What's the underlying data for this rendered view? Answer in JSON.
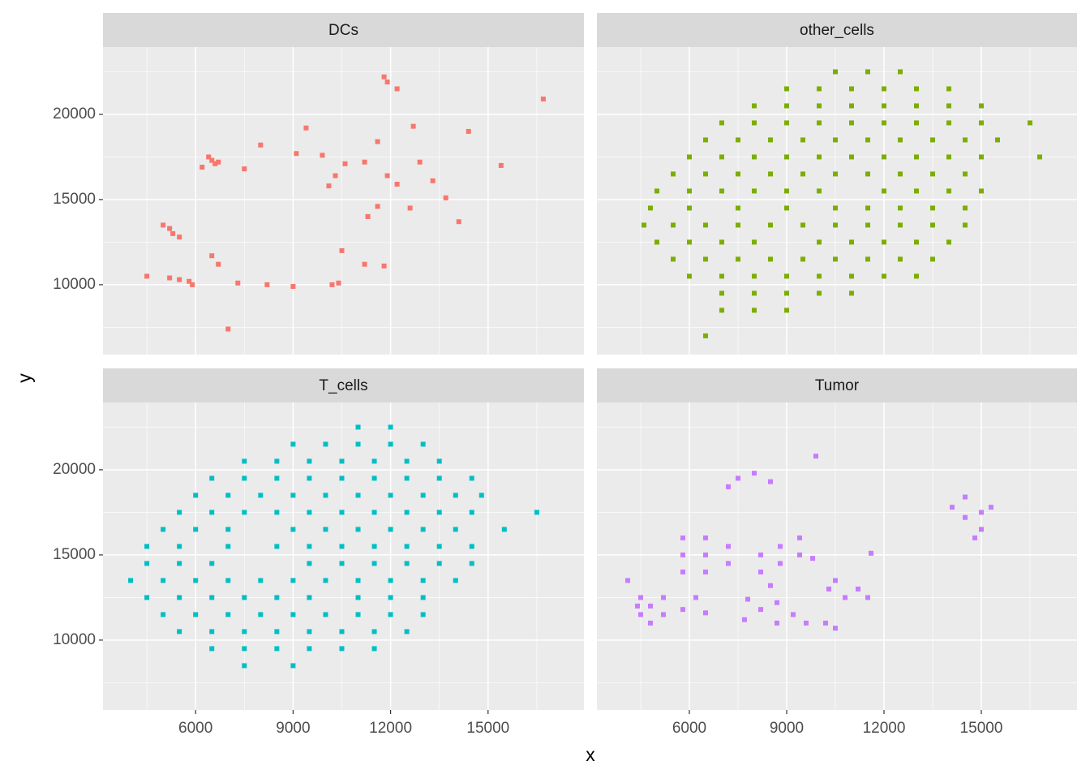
{
  "chart_data": {
    "type": "scatter",
    "xlabel": "x",
    "ylabel": "y",
    "xlim": [
      3150,
      17950
    ],
    "ylim": [
      5900,
      23950
    ],
    "xticks": [
      6000,
      9000,
      12000,
      15000
    ],
    "yticks": [
      10000,
      15000,
      20000
    ],
    "xminorticks": [
      4500,
      7500,
      10500,
      13500,
      16500
    ],
    "yminorticks": [
      7500,
      12500,
      17500,
      22500
    ],
    "grid": true,
    "series": [
      {
        "name": "DCs",
        "color": "#F8766D",
        "x": [
          5200,
          5000,
          5300,
          5500,
          5200,
          5500,
          5800,
          5900,
          4500,
          6200,
          6500,
          6600,
          6400,
          6700,
          6500,
          6700,
          7300,
          8200,
          9000,
          10200,
          10400,
          7500,
          8000,
          9100,
          9400,
          9900,
          10100,
          10300,
          10600,
          11200,
          11600,
          11900,
          12200,
          12700,
          12900,
          13300,
          13700,
          14100,
          14400,
          15400,
          16700,
          11800,
          11300,
          11600,
          12600,
          11200,
          11800,
          10500,
          7000,
          12200,
          11900
        ],
        "y": [
          13300,
          13500,
          13000,
          12800,
          10400,
          10300,
          10200,
          10000,
          10500,
          16900,
          17300,
          17100,
          17500,
          17200,
          11700,
          11200,
          10100,
          10000,
          9900,
          10000,
          10100,
          16800,
          18200,
          17700,
          19200,
          17600,
          15800,
          16400,
          17100,
          17200,
          18400,
          16400,
          15900,
          19300,
          17200,
          16100,
          15100,
          13700,
          19000,
          17000,
          20900,
          22200,
          14000,
          14600,
          14500,
          11200,
          11100,
          12000,
          7400,
          21500,
          21900
        ]
      },
      {
        "name": "other_cells",
        "color": "#7CAE00",
        "x": [
          10500,
          11500,
          12500,
          9000,
          10000,
          11000,
          12000,
          13000,
          14000,
          8000,
          9000,
          10000,
          11000,
          12000,
          13000,
          14000,
          15000,
          7000,
          8000,
          9000,
          10000,
          11000,
          12000,
          13000,
          14000,
          15000,
          16500,
          6500,
          7500,
          8500,
          9500,
          10500,
          11500,
          12500,
          13500,
          14500,
          15500,
          6000,
          7000,
          8000,
          9000,
          10000,
          11000,
          12000,
          13000,
          14000,
          15000,
          16800,
          5500,
          6500,
          7500,
          8500,
          9500,
          10500,
          11500,
          12500,
          13500,
          14500,
          5000,
          6000,
          7000,
          8000,
          9000,
          10000,
          12000,
          13000,
          14000,
          15000,
          4800,
          6000,
          7500,
          9000,
          10500,
          11500,
          12500,
          13500,
          14500,
          4600,
          5500,
          6500,
          7500,
          8500,
          9500,
          10500,
          11500,
          12500,
          13500,
          14500,
          5000,
          6000,
          7000,
          8000,
          10000,
          11000,
          12000,
          13000,
          14000,
          5500,
          6500,
          7500,
          8500,
          9500,
          10500,
          11500,
          12500,
          13500,
          6000,
          7000,
          8000,
          9000,
          10000,
          11000,
          12000,
          13000,
          7000,
          8000,
          9000,
          10000,
          11000,
          7000,
          8000,
          9000,
          6500
        ],
        "y": [
          22500,
          22500,
          22500,
          21500,
          21500,
          21500,
          21500,
          21500,
          21500,
          20500,
          20500,
          20500,
          20500,
          20500,
          20500,
          20500,
          20500,
          19500,
          19500,
          19500,
          19500,
          19500,
          19500,
          19500,
          19500,
          19500,
          19500,
          18500,
          18500,
          18500,
          18500,
          18500,
          18500,
          18500,
          18500,
          18500,
          18500,
          17500,
          17500,
          17500,
          17500,
          17500,
          17500,
          17500,
          17500,
          17500,
          17500,
          17500,
          16500,
          16500,
          16500,
          16500,
          16500,
          16500,
          16500,
          16500,
          16500,
          16500,
          15500,
          15500,
          15500,
          15500,
          15500,
          15500,
          15500,
          15500,
          15500,
          15500,
          14500,
          14500,
          14500,
          14500,
          14500,
          14500,
          14500,
          14500,
          14500,
          13500,
          13500,
          13500,
          13500,
          13500,
          13500,
          13500,
          13500,
          13500,
          13500,
          13500,
          12500,
          12500,
          12500,
          12500,
          12500,
          12500,
          12500,
          12500,
          12500,
          11500,
          11500,
          11500,
          11500,
          11500,
          11500,
          11500,
          11500,
          11500,
          10500,
          10500,
          10500,
          10500,
          10500,
          10500,
          10500,
          10500,
          9500,
          9500,
          9500,
          9500,
          9500,
          8500,
          8500,
          8500,
          7000
        ]
      },
      {
        "name": "T_cells",
        "color": "#00BFC4",
        "x": [
          11000,
          12000,
          9000,
          10000,
          11000,
          12000,
          13000,
          7500,
          8500,
          9500,
          10500,
          11500,
          12500,
          13500,
          6500,
          7500,
          8500,
          9500,
          10500,
          11500,
          12500,
          13500,
          14500,
          6000,
          7000,
          8000,
          9000,
          10000,
          11000,
          12000,
          13000,
          14000,
          14800,
          5500,
          6500,
          7500,
          8500,
          9500,
          10500,
          11500,
          12500,
          13500,
          14500,
          16500,
          5000,
          6000,
          7000,
          9000,
          10000,
          11000,
          12000,
          13000,
          14000,
          15500,
          4500,
          5500,
          7000,
          8500,
          9500,
          10500,
          11500,
          12500,
          13500,
          14500,
          4500,
          5500,
          6500,
          9500,
          10500,
          11500,
          12500,
          13500,
          14500,
          4000,
          5000,
          6000,
          7000,
          8000,
          9000,
          10000,
          11000,
          12000,
          13000,
          14000,
          4500,
          5500,
          6500,
          7500,
          8500,
          9500,
          11000,
          12000,
          13000,
          5000,
          6000,
          7000,
          8000,
          9000,
          10000,
          11000,
          12000,
          13000,
          5500,
          6500,
          7500,
          8500,
          9500,
          10500,
          11500,
          12500,
          6500,
          7500,
          8500,
          9500,
          10500,
          11500,
          7500,
          9000
        ],
        "y": [
          22500,
          22500,
          21500,
          21500,
          21500,
          21500,
          21500,
          20500,
          20500,
          20500,
          20500,
          20500,
          20500,
          20500,
          19500,
          19500,
          19500,
          19500,
          19500,
          19500,
          19500,
          19500,
          19500,
          18500,
          18500,
          18500,
          18500,
          18500,
          18500,
          18500,
          18500,
          18500,
          18500,
          17500,
          17500,
          17500,
          17500,
          17500,
          17500,
          17500,
          17500,
          17500,
          17500,
          17500,
          16500,
          16500,
          16500,
          16500,
          16500,
          16500,
          16500,
          16500,
          16500,
          16500,
          15500,
          15500,
          15500,
          15500,
          15500,
          15500,
          15500,
          15500,
          15500,
          15500,
          14500,
          14500,
          14500,
          14500,
          14500,
          14500,
          14500,
          14500,
          14500,
          13500,
          13500,
          13500,
          13500,
          13500,
          13500,
          13500,
          13500,
          13500,
          13500,
          13500,
          12500,
          12500,
          12500,
          12500,
          12500,
          12500,
          12500,
          12500,
          12500,
          11500,
          11500,
          11500,
          11500,
          11500,
          11500,
          11500,
          11500,
          11500,
          10500,
          10500,
          10500,
          10500,
          10500,
          10500,
          10500,
          10500,
          9500,
          9500,
          9500,
          9500,
          9500,
          9500,
          8500,
          8500
        ]
      },
      {
        "name": "Tumor",
        "color": "#C77CFF",
        "x": [
          4500,
          4500,
          5200,
          5200,
          4800,
          4800,
          4400,
          5800,
          6200,
          6500,
          5800,
          5800,
          5800,
          6500,
          6500,
          6500,
          7200,
          7200,
          7500,
          8000,
          8500,
          7200,
          8200,
          8200,
          8800,
          8800,
          9400,
          9400,
          9800,
          8500,
          7700,
          8200,
          8700,
          8700,
          9200,
          9600,
          7800,
          10300,
          10800,
          11200,
          10500,
          11500,
          10200,
          10500,
          14100,
          14500,
          14500,
          15000,
          15000,
          15300,
          14800,
          11600,
          9900,
          4100
        ],
        "y": [
          11500,
          12500,
          11500,
          12500,
          11000,
          12000,
          12000,
          11800,
          12500,
          11600,
          14000,
          15000,
          16000,
          14000,
          15000,
          16000,
          14500,
          15500,
          19500,
          19800,
          19300,
          19000,
          14000,
          15000,
          14500,
          15500,
          15000,
          16000,
          14800,
          13200,
          11200,
          11800,
          11000,
          12200,
          11500,
          11000,
          12400,
          13000,
          12500,
          13000,
          13500,
          12500,
          11000,
          10700,
          17800,
          17200,
          18400,
          17500,
          16500,
          17800,
          16000,
          15100,
          20800,
          13500
        ]
      }
    ]
  }
}
